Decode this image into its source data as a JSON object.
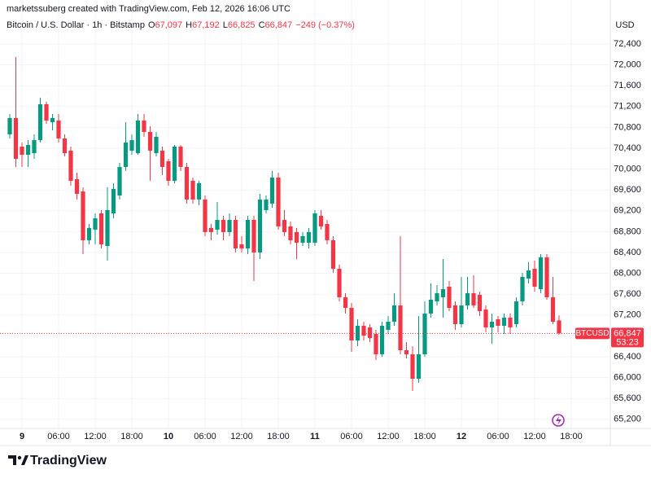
{
  "header": {
    "credit": "marketssuberg created with TradingView.com, Feb 12, 2026 16:06 UTC"
  },
  "chart_data": {
    "type": "candlestick",
    "title": "Bitcoin / U.S. Dollar · 1h · Bitstamp",
    "currency": "USD",
    "legend": [
      {
        "key": "O",
        "value": "67,097"
      },
      {
        "key": "H",
        "value": "67,192"
      },
      {
        "key": "L",
        "value": "66,825"
      },
      {
        "key": "C",
        "value": "66,847"
      }
    ],
    "change": "−249 (−0.37%)",
    "open": [
      70666,
      70978,
      70431,
      70275,
      70306,
      70556,
      71244,
      70900,
      70931,
      70588,
      70353,
      69806,
      69572,
      68635,
      68838,
      69150,
      68525,
      69150,
      69494,
      70041,
      70353,
      70306,
      70931,
      70713,
      70306,
      70353,
      70150,
      69775,
      70431,
      70041,
      69775,
      69416,
      69416,
      68869,
      68838,
      69025,
      68791,
      69025,
      68556,
      68478,
      69025,
      68400,
      69213,
      69338,
      69838,
      69025,
      68900,
      68791,
      68588,
      68588,
      68588,
      69103,
      68947,
      68635,
      68088,
      67541,
      67338,
      66713,
      66994,
      66963,
      66838,
      66447,
      66916,
      67072,
      67385,
      66525,
      66447,
      65978,
      66447,
      67228,
      67463,
      67541,
      67744,
      67385,
      67025,
      67385,
      67619,
      67588,
      67306,
      66963,
      67119,
      66994,
      67150,
      67025,
      67463,
      67900,
      68088,
      67697,
      68306,
      67541,
      67097
    ],
    "high": [
      71056,
      72150,
      70510,
      70556,
      70666,
      71369,
      71291,
      71056,
      71056,
      70666,
      70431,
      69931,
      69650,
      68947,
      69150,
      69213,
      69650,
      69728,
      70119,
      70900,
      70666,
      71056,
      71056,
      70822,
      70713,
      70431,
      70197,
      70463,
      70463,
      70119,
      69838,
      69775,
      69494,
      68947,
      69369,
      69103,
      69150,
      69103,
      68713,
      69103,
      69103,
      69525,
      69494,
      69963,
      69931,
      69213,
      68994,
      68869,
      68791,
      68869,
      69213,
      69213,
      69025,
      68713,
      68166,
      67619,
      67431,
      67119,
      67072,
      67025,
      66916,
      67072,
      67181,
      67619,
      68713,
      66681,
      66603,
      67181,
      67463,
      67806,
      67775,
      68275,
      67853,
      67463,
      67931,
      67931,
      67963,
      67650,
      67385,
      67228,
      67181,
      67228,
      67228,
      67541,
      68010,
      68213,
      68244,
      68369,
      68369,
      67931,
      67192
    ],
    "low": [
      70588,
      70041,
      70041,
      70041,
      70197,
      70510,
      70869,
      70744,
      70510,
      70244,
      69681,
      69416,
      68369,
      68556,
      68556,
      68478,
      68244,
      69056,
      69416,
      69963,
      70275,
      70275,
      70619,
      69775,
      70244,
      69885,
      69681,
      69728,
      69963,
      69338,
      69338,
      69306,
      68713,
      68635,
      68744,
      68635,
      68713,
      68400,
      68400,
      68369,
      67853,
      68275,
      69150,
      69260,
      68838,
      68713,
      68556,
      68275,
      68525,
      68478,
      68525,
      68838,
      68556,
      68010,
      67463,
      67228,
      66494,
      66603,
      66713,
      66681,
      66338,
      66400,
      66838,
      66994,
      66447,
      66369,
      65744,
      65900,
      66400,
      67150,
      67385,
      67150,
      67275,
      66916,
      66963,
      67306,
      67338,
      67181,
      66869,
      66650,
      66869,
      66838,
      66838,
      66963,
      67385,
      67806,
      67650,
      67619,
      67494,
      67025,
      66825
    ],
    "close": [
      70978,
      70197,
      70275,
      70463,
      70556,
      71244,
      70931,
      70978,
      70588,
      70306,
      69775,
      69525,
      68635,
      68869,
      69056,
      68556,
      69213,
      69619,
      70041,
      70510,
      70556,
      70931,
      70713,
      70353,
      70619,
      70041,
      69775,
      70431,
      70041,
      69416,
      69416,
      69728,
      68791,
      68791,
      69025,
      68791,
      69025,
      68478,
      68478,
      69025,
      68400,
      69416,
      69416,
      69838,
      68900,
      68791,
      68635,
      68588,
      68713,
      68791,
      69150,
      68900,
      68635,
      68088,
      67541,
      67338,
      66713,
      66994,
      66806,
      66760,
      66447,
      66994,
      67072,
      67385,
      66525,
      66447,
      65978,
      66447,
      67228,
      67494,
      67619,
      67697,
      67338,
      67025,
      67385,
      67619,
      67385,
      67275,
      66963,
      67072,
      66994,
      67150,
      66963,
      67463,
      67931,
      68056,
      67744,
      68306,
      67541,
      67072,
      66847
    ],
    "up_color": "#089981",
    "down_color": "#f23645",
    "xlim": [
      -1.6,
      98.4
    ],
    "xticks": [
      {
        "value": 2,
        "label": "9"
      },
      {
        "value": 8,
        "label": "06:00"
      },
      {
        "value": 14,
        "label": "12:00"
      },
      {
        "value": 20,
        "label": "18:00"
      },
      {
        "value": 26,
        "label": "10"
      },
      {
        "value": 32,
        "label": "06:00"
      },
      {
        "value": 38,
        "label": "12:00"
      },
      {
        "value": 44,
        "label": "18:00"
      },
      {
        "value": 50,
        "label": "11"
      },
      {
        "value": 56,
        "label": "06:00"
      },
      {
        "value": 62,
        "label": "12:00"
      },
      {
        "value": 68,
        "label": "18:00"
      },
      {
        "value": 74,
        "label": "12"
      },
      {
        "value": 80,
        "label": "06:00"
      },
      {
        "value": 86,
        "label": "12:00"
      },
      {
        "value": 92,
        "label": "18:00"
      }
    ],
    "ylim": [
      65025,
      72900
    ],
    "yticks": [
      {
        "value": 65200,
        "label": "65,200"
      },
      {
        "value": 65600,
        "label": "65,600"
      },
      {
        "value": 66000,
        "label": "66,000"
      },
      {
        "value": 66400,
        "label": "66,400"
      },
      {
        "value": 66800,
        "label": "66,800"
      },
      {
        "value": 67200,
        "label": "67,200"
      },
      {
        "value": 67600,
        "label": "67,600"
      },
      {
        "value": 68000,
        "label": "68,000"
      },
      {
        "value": 68400,
        "label": "68,400"
      },
      {
        "value": 68800,
        "label": "68,800"
      },
      {
        "value": 69200,
        "label": "69,200"
      },
      {
        "value": 69600,
        "label": "69,600"
      },
      {
        "value": 70000,
        "label": "70,000"
      },
      {
        "value": 70400,
        "label": "70,400"
      },
      {
        "value": 70800,
        "label": "70,800"
      },
      {
        "value": 71200,
        "label": "71,200"
      },
      {
        "value": 71600,
        "label": "71,600"
      },
      {
        "value": 72000,
        "label": "72,000"
      },
      {
        "value": 72400,
        "label": "72,400"
      }
    ],
    "grid": true,
    "last_price": {
      "value": 66847,
      "label": "66,847",
      "symbol": "BTCUSD",
      "countdown": "53:23"
    }
  },
  "footer": {
    "brand": "TradingView"
  }
}
